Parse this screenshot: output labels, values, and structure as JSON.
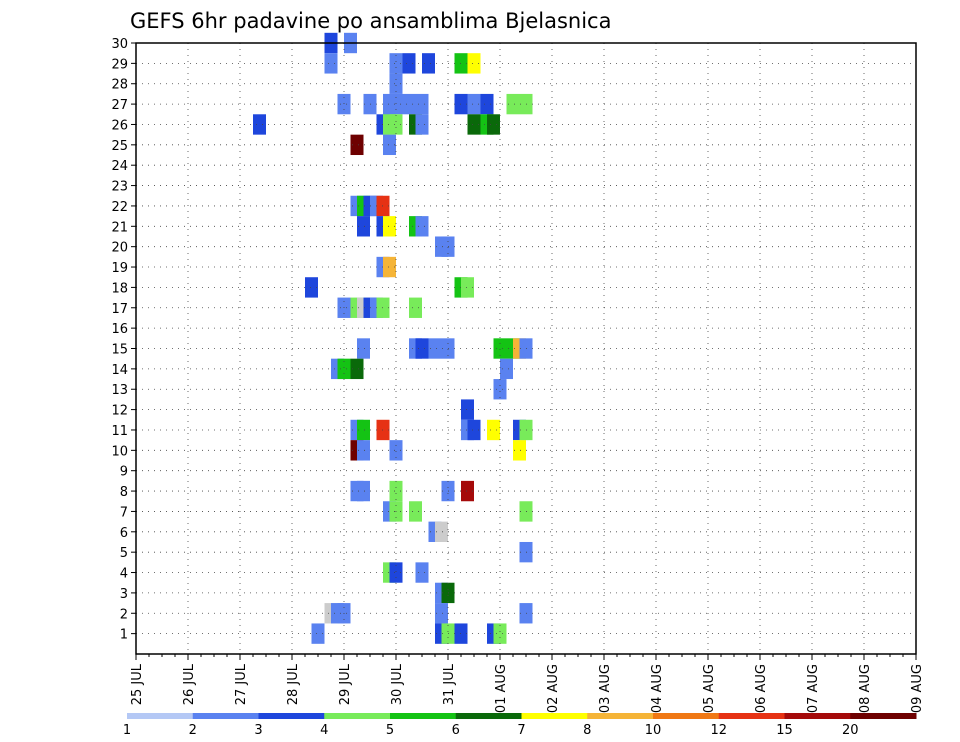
{
  "chart_data": {
    "type": "heatmap",
    "title": "GEFS 6hr padavine po ansamblima Bjelasnica",
    "y_ticks": [
      "1",
      "2",
      "3",
      "4",
      "5",
      "6",
      "7",
      "8",
      "9",
      "10",
      "11",
      "12",
      "13",
      "14",
      "15",
      "16",
      "17",
      "18",
      "19",
      "20",
      "21",
      "22",
      "23",
      "24",
      "25",
      "26",
      "27",
      "28",
      "29",
      "30"
    ],
    "x_ticks": [
      "25 JUL",
      "26 JUL",
      "27 JUL",
      "28 JUL",
      "29 JUL",
      "30 JUL",
      "31 JUL",
      "01 AUG",
      "02 AUG",
      "03 AUG",
      "04 AUG",
      "05 AUG",
      "06 AUG",
      "07 AUG",
      "08 AUG",
      "09 AUG"
    ],
    "x_range": [
      0,
      60
    ],
    "y_range": [
      0,
      30
    ],
    "grid": true,
    "legend": {
      "position": "bottom",
      "labels": [
        "1",
        "2",
        "3",
        "4",
        "5",
        "6",
        "7",
        "8",
        "10",
        "12",
        "15",
        "20"
      ],
      "colors": [
        "#b4c8f5",
        "#5a82f0",
        "#1e46dc",
        "#78eb5a",
        "#14c314",
        "#0a690a",
        "#ffff00",
        "#f5b437",
        "#f07814",
        "#e63214",
        "#a50a0a",
        "#6e0000"
      ]
    },
    "cells": [
      [
        15,
        30,
        2
      ],
      [
        16.5,
        30,
        1
      ],
      [
        15,
        29,
        1
      ],
      [
        20,
        29,
        1
      ],
      [
        21,
        29,
        2
      ],
      [
        22.5,
        29,
        2
      ],
      [
        25,
        29,
        4
      ],
      [
        26,
        29,
        6
      ],
      [
        20,
        28,
        1
      ],
      [
        16,
        27,
        1
      ],
      [
        18,
        27,
        1
      ],
      [
        19.5,
        27,
        1
      ],
      [
        20,
        27,
        1
      ],
      [
        21,
        27,
        1
      ],
      [
        22,
        27,
        1
      ],
      [
        25,
        27,
        2
      ],
      [
        26,
        27,
        1
      ],
      [
        27,
        27,
        2
      ],
      [
        29,
        27,
        3
      ],
      [
        30,
        27,
        3
      ],
      [
        9.5,
        26,
        2
      ],
      [
        19,
        26,
        2
      ],
      [
        19.5,
        26,
        3
      ],
      [
        20,
        26,
        3
      ],
      [
        21.5,
        26,
        5
      ],
      [
        22,
        26,
        1
      ],
      [
        26,
        26,
        5
      ],
      [
        27,
        26,
        4
      ],
      [
        27.5,
        26,
        5
      ],
      [
        17,
        25,
        11
      ],
      [
        19.5,
        25,
        1
      ],
      [
        17,
        22,
        1
      ],
      [
        17.5,
        22,
        4
      ],
      [
        18,
        22,
        2
      ],
      [
        18.5,
        22,
        1
      ],
      [
        19,
        22,
        9
      ],
      [
        17.5,
        21,
        2
      ],
      [
        19,
        21,
        2
      ],
      [
        19.5,
        21,
        6
      ],
      [
        21.5,
        21,
        4
      ],
      [
        22,
        21,
        1
      ],
      [
        23.5,
        20,
        1
      ],
      [
        24,
        20,
        1
      ],
      [
        19,
        19,
        1
      ],
      [
        19.5,
        19,
        7
      ],
      [
        13.5,
        18,
        2
      ],
      [
        25,
        18,
        4
      ],
      [
        25.5,
        18,
        3
      ],
      [
        16,
        17,
        1
      ],
      [
        17,
        17,
        3
      ],
      [
        17.5,
        17,
        13
      ],
      [
        18,
        17,
        2
      ],
      [
        18.5,
        17,
        1
      ],
      [
        19,
        17,
        3
      ],
      [
        21.5,
        17,
        3
      ],
      [
        17.5,
        15,
        1
      ],
      [
        21.5,
        15,
        1
      ],
      [
        22,
        15,
        2
      ],
      [
        23,
        15,
        1
      ],
      [
        24,
        15,
        1
      ],
      [
        28,
        15,
        4
      ],
      [
        29,
        15,
        4
      ],
      [
        29.5,
        15,
        7
      ],
      [
        30,
        15,
        1
      ],
      [
        15.5,
        14,
        1
      ],
      [
        16,
        14,
        4
      ],
      [
        17,
        14,
        5
      ],
      [
        28.5,
        14,
        1
      ],
      [
        28,
        13,
        1
      ],
      [
        25.5,
        12,
        2
      ],
      [
        17,
        11,
        1
      ],
      [
        17.5,
        11,
        4
      ],
      [
        19,
        11,
        9
      ],
      [
        25.5,
        11,
        1
      ],
      [
        26,
        11,
        2
      ],
      [
        27.5,
        11,
        6
      ],
      [
        29.5,
        11,
        2
      ],
      [
        30,
        11,
        3
      ],
      [
        17,
        10,
        11
      ],
      [
        17.5,
        10,
        1
      ],
      [
        20,
        10,
        1
      ],
      [
        29.5,
        10,
        6
      ],
      [
        17,
        8,
        1
      ],
      [
        17.5,
        8,
        1
      ],
      [
        20,
        8,
        3
      ],
      [
        24,
        8,
        1
      ],
      [
        25.5,
        8,
        10
      ],
      [
        19.5,
        7,
        1
      ],
      [
        20,
        7,
        3
      ],
      [
        21.5,
        7,
        3
      ],
      [
        30,
        7,
        3
      ],
      [
        23,
        6,
        1
      ],
      [
        23.5,
        6,
        13
      ],
      [
        30,
        5,
        1
      ],
      [
        19.5,
        4,
        3
      ],
      [
        20,
        4,
        2
      ],
      [
        22,
        4,
        1
      ],
      [
        23.5,
        3,
        1
      ],
      [
        24,
        3,
        5
      ],
      [
        15,
        2,
        14
      ],
      [
        15.5,
        2,
        1
      ],
      [
        16,
        2,
        1
      ],
      [
        23.5,
        2,
        1
      ],
      [
        30,
        2,
        1
      ],
      [
        14,
        1,
        1
      ],
      [
        23.5,
        1,
        2
      ],
      [
        24,
        1,
        3
      ],
      [
        25,
        1,
        2
      ],
      [
        27.5,
        1,
        2
      ],
      [
        28,
        1,
        3
      ]
    ]
  }
}
